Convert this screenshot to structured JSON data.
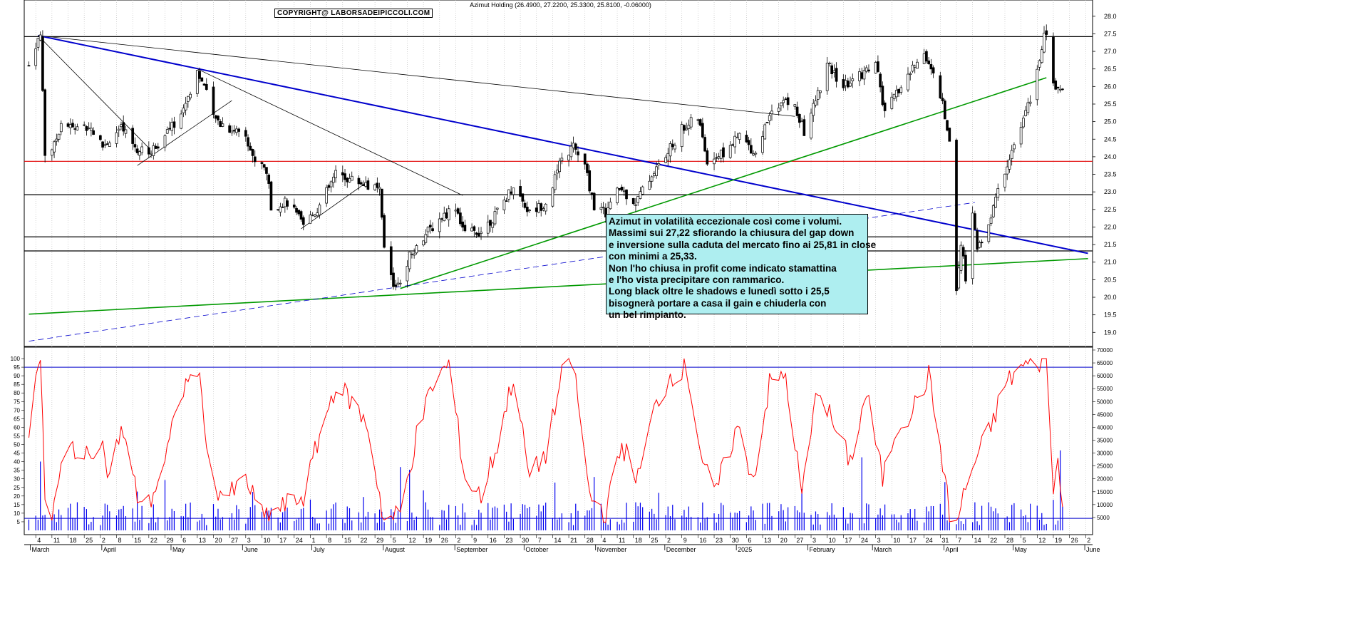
{
  "header": {
    "title": "Azimut Holding (26.4900, 27.2200, 25.3300, 25.8100, -0.06000)",
    "copyright": "COPYRIGHT@ LABORSADEIPICCOLI.COM"
  },
  "note": {
    "lines": [
      "Azimut in volatilità eccezionale così come i volumi.",
      "Massimi sui 27,22 sfiorando la chiusura del gap down",
      "e inversione sulla caduta del mercato fino ai 25,81 in close",
      "con minimi a 25,33.",
      "Non l'ho chiusa in profit come indicato stamattina",
      "e l'ho vista precipitare con rammarico.",
      "Long black oltre le shadows e lunedì sotto i 25,5",
      "bisognerà portare a casa il gain e chiuderla con",
      "un bel rimpianto."
    ]
  },
  "chart_data": {
    "type": "candlestick",
    "title": "Azimut Holding",
    "price_axis": {
      "range": [
        18.6,
        28.3
      ],
      "ticks": [
        19.0,
        19.5,
        20.0,
        20.5,
        21.0,
        21.5,
        22.0,
        22.5,
        23.0,
        23.5,
        24.0,
        24.5,
        25.0,
        25.5,
        26.0,
        26.5,
        27.0,
        27.5,
        28.0
      ]
    },
    "oscillator_axis": {
      "range": [
        0,
        105
      ],
      "ticks": [
        5,
        10,
        15,
        20,
        25,
        30,
        35,
        40,
        45,
        50,
        55,
        60,
        65,
        70,
        75,
        80,
        85,
        90,
        95,
        100
      ]
    },
    "volume_axis": {
      "range": [
        0,
        70000
      ],
      "ticks": [
        5000,
        10000,
        15000,
        20000,
        25000,
        30000,
        35000,
        40000,
        45000,
        50000,
        55000,
        60000,
        65000,
        70000
      ]
    },
    "day_labels": [
      "4",
      "11",
      "18",
      "25",
      "2",
      "8",
      "15",
      "22",
      "29",
      "6",
      "13",
      "20",
      "27",
      "3",
      "10",
      "17",
      "24",
      "1",
      "8",
      "15",
      "22",
      "29",
      "5",
      "12",
      "19",
      "26",
      "2",
      "9",
      "16",
      "23",
      "30",
      "7",
      "14",
      "21",
      "28",
      "4",
      "11",
      "18",
      "25",
      "2",
      "9",
      "16",
      "23",
      "30",
      "6",
      "13",
      "20",
      "27",
      "3",
      "10",
      "17",
      "24",
      "3",
      "10",
      "17",
      "24",
      "31",
      "7",
      "14",
      "22",
      "28",
      "5",
      "12",
      "19",
      "26",
      "2"
    ],
    "month_labels": [
      "March",
      "April",
      "May",
      "June",
      "July",
      "August",
      "September",
      "October",
      "November",
      "December",
      "2025",
      "February",
      "March",
      "April",
      "May",
      "June"
    ],
    "horizontal_levels": [
      {
        "price": 27.42,
        "color": "#000000"
      },
      {
        "price": 23.87,
        "color": "#e00000"
      },
      {
        "price": 22.92,
        "color": "#000000"
      },
      {
        "price": 21.72,
        "color": "#000000"
      },
      {
        "price": 21.32,
        "color": "#000000"
      }
    ],
    "oscillator_levels": [
      95,
      7
    ],
    "trendlines": [
      {
        "from": [
          "2024-03-05",
          27.45
        ],
        "to": [
          "2025-06-03",
          21.25
        ],
        "color": "#0000cc",
        "width": 2
      },
      {
        "from": [
          "2024-03-05",
          27.45
        ],
        "to": [
          "2025-01-27",
          25.15
        ],
        "color": "#000000",
        "width": 0.8
      },
      {
        "from": [
          "2024-03-05",
          27.45
        ],
        "to": [
          "2024-04-22",
          24.25
        ],
        "color": "#000000",
        "width": 0.8
      },
      {
        "from": [
          "2024-04-17",
          23.75
        ],
        "to": [
          "2024-05-28",
          25.6
        ],
        "color": "#000000",
        "width": 0.8
      },
      {
        "from": [
          "2024-05-13",
          26.5
        ],
        "to": [
          "2024-09-05",
          22.9
        ],
        "color": "#000000",
        "width": 0.8
      },
      {
        "from": [
          "2024-06-27",
          21.95
        ],
        "to": [
          "2024-07-26",
          23.3
        ],
        "color": "#000000",
        "width": 0.8
      },
      {
        "from": [
          "2024-08-09",
          20.25
        ],
        "to": [
          "2025-05-16",
          26.25
        ],
        "color": "#009900",
        "width": 1.6
      },
      {
        "from": [
          "2024-03-01",
          19.52
        ],
        "to": [
          "2025-06-03",
          21.1
        ],
        "color": "#009900",
        "width": 1.6
      },
      {
        "from": [
          "2024-03-01",
          18.75
        ],
        "to": [
          "2025-04-15",
          22.7
        ],
        "color": "#0000cc",
        "width": 0.8,
        "dash": true
      }
    ],
    "price_path": [
      [
        "2024-03-01",
        26.6
      ],
      [
        "2024-03-04",
        27.2
      ],
      [
        "2024-03-06",
        27.45
      ],
      [
        "2024-03-07",
        25.9
      ],
      [
        "2024-03-08",
        24.1
      ],
      [
        "2024-03-12",
        24.3
      ],
      [
        "2024-03-15",
        25.0
      ],
      [
        "2024-03-20",
        24.8
      ],
      [
        "2024-03-27",
        24.9
      ],
      [
        "2024-04-02",
        24.3
      ],
      [
        "2024-04-10",
        24.8
      ],
      [
        "2024-04-17",
        24.2
      ],
      [
        "2024-04-22",
        24.1
      ],
      [
        "2024-04-29",
        24.6
      ],
      [
        "2024-05-06",
        25.2
      ],
      [
        "2024-05-13",
        26.45
      ],
      [
        "2024-05-16",
        26.0
      ],
      [
        "2024-05-20",
        25.1
      ],
      [
        "2024-05-27",
        24.8
      ],
      [
        "2024-06-03",
        24.7
      ],
      [
        "2024-06-06",
        23.95
      ],
      [
        "2024-06-12",
        23.6
      ],
      [
        "2024-06-14",
        22.6
      ],
      [
        "2024-06-21",
        22.7
      ],
      [
        "2024-06-28",
        22.05
      ],
      [
        "2024-07-05",
        22.6
      ],
      [
        "2024-07-12",
        23.5
      ],
      [
        "2024-07-19",
        23.35
      ],
      [
        "2024-07-26",
        23.2
      ],
      [
        "2024-07-31",
        23.0
      ],
      [
        "2024-08-02",
        21.4
      ],
      [
        "2024-08-06",
        20.3
      ],
      [
        "2024-08-09",
        20.5
      ],
      [
        "2024-08-13",
        21.2
      ],
      [
        "2024-08-20",
        21.8
      ],
      [
        "2024-08-27",
        22.3
      ],
      [
        "2024-09-02",
        22.6
      ],
      [
        "2024-09-06",
        21.8
      ],
      [
        "2024-09-13",
        21.9
      ],
      [
        "2024-09-20",
        22.4
      ],
      [
        "2024-09-27",
        23.2
      ],
      [
        "2024-10-04",
        22.4
      ],
      [
        "2024-10-11",
        22.7
      ],
      [
        "2024-10-18",
        23.9
      ],
      [
        "2024-10-23",
        24.3
      ],
      [
        "2024-10-28",
        23.7
      ],
      [
        "2024-11-01",
        22.6
      ],
      [
        "2024-11-06",
        22.4
      ],
      [
        "2024-11-12",
        23.1
      ],
      [
        "2024-11-19",
        22.7
      ],
      [
        "2024-11-26",
        23.5
      ],
      [
        "2024-12-02",
        24.0
      ],
      [
        "2024-12-09",
        24.8
      ],
      [
        "2024-12-16",
        25.1
      ],
      [
        "2024-12-20",
        23.9
      ],
      [
        "2024-12-27",
        24.1
      ],
      [
        "2025-01-03",
        24.6
      ],
      [
        "2025-01-10",
        24.1
      ],
      [
        "2025-01-17",
        25.4
      ],
      [
        "2025-01-22",
        25.6
      ],
      [
        "2025-01-27",
        25.4
      ],
      [
        "2025-01-31",
        24.7
      ],
      [
        "2025-02-05",
        25.6
      ],
      [
        "2025-02-10",
        26.6
      ],
      [
        "2025-02-17",
        26.0
      ],
      [
        "2025-02-24",
        26.3
      ],
      [
        "2025-03-03",
        26.7
      ],
      [
        "2025-03-07",
        25.2
      ],
      [
        "2025-03-12",
        25.8
      ],
      [
        "2025-03-17",
        26.3
      ],
      [
        "2025-03-24",
        27.0
      ],
      [
        "2025-03-28",
        26.3
      ],
      [
        "2025-04-01",
        25.5
      ],
      [
        "2025-04-04",
        24.4
      ],
      [
        "2025-04-07",
        20.3
      ],
      [
        "2025-04-09",
        21.5
      ],
      [
        "2025-04-11",
        20.6
      ],
      [
        "2025-04-14",
        22.5
      ],
      [
        "2025-04-16",
        21.3
      ],
      [
        "2025-04-22",
        22.3
      ],
      [
        "2025-04-25",
        23.0
      ],
      [
        "2025-04-30",
        24.0
      ],
      [
        "2025-05-06",
        25.0
      ],
      [
        "2025-05-12",
        26.4
      ],
      [
        "2025-05-15",
        27.4
      ],
      [
        "2025-05-16",
        27.55
      ],
      [
        "2025-05-19",
        26.0
      ],
      [
        "2025-05-23",
        25.9
      ]
    ],
    "oscillator_path": [
      [
        "2024-03-01",
        60
      ],
      [
        "2024-03-04",
        95
      ],
      [
        "2024-03-06",
        97
      ],
      [
        "2024-03-08",
        20
      ],
      [
        "2024-03-11",
        8
      ],
      [
        "2024-03-15",
        35
      ],
      [
        "2024-03-20",
        50
      ],
      [
        "2024-03-25",
        40
      ],
      [
        "2024-04-01",
        55
      ],
      [
        "2024-04-05",
        30
      ],
      [
        "2024-04-10",
        60
      ],
      [
        "2024-04-17",
        20
      ],
      [
        "2024-04-22",
        15
      ],
      [
        "2024-04-29",
        40
      ],
      [
        "2024-05-06",
        80
      ],
      [
        "2024-05-13",
        95
      ],
      [
        "2024-05-20",
        25
      ],
      [
        "2024-05-27",
        20
      ],
      [
        "2024-06-03",
        30
      ],
      [
        "2024-06-10",
        8
      ],
      [
        "2024-06-14",
        10
      ],
      [
        "2024-06-21",
        15
      ],
      [
        "2024-06-28",
        20
      ],
      [
        "2024-07-05",
        55
      ],
      [
        "2024-07-12",
        85
      ],
      [
        "2024-07-19",
        75
      ],
      [
        "2024-07-26",
        60
      ],
      [
        "2024-08-02",
        5
      ],
      [
        "2024-08-09",
        10
      ],
      [
        "2024-08-16",
        55
      ],
      [
        "2024-08-23",
        85
      ],
      [
        "2024-08-30",
        97
      ],
      [
        "2024-09-06",
        30
      ],
      [
        "2024-09-13",
        20
      ],
      [
        "2024-09-20",
        50
      ],
      [
        "2024-09-27",
        90
      ],
      [
        "2024-10-04",
        30
      ],
      [
        "2024-10-11",
        45
      ],
      [
        "2024-10-18",
        90
      ],
      [
        "2024-10-23",
        97
      ],
      [
        "2024-10-30",
        20
      ],
      [
        "2024-11-06",
        10
      ],
      [
        "2024-11-13",
        50
      ],
      [
        "2024-11-20",
        30
      ],
      [
        "2024-11-27",
        70
      ],
      [
        "2024-12-04",
        90
      ],
      [
        "2024-12-11",
        95
      ],
      [
        "2024-12-18",
        40
      ],
      [
        "2024-12-23",
        20
      ],
      [
        "2025-01-02",
        60
      ],
      [
        "2025-01-09",
        30
      ],
      [
        "2025-01-16",
        85
      ],
      [
        "2025-01-23",
        90
      ],
      [
        "2025-01-30",
        20
      ],
      [
        "2025-02-06",
        85
      ],
      [
        "2025-02-13",
        60
      ],
      [
        "2025-02-20",
        40
      ],
      [
        "2025-02-27",
        80
      ],
      [
        "2025-03-06",
        30
      ],
      [
        "2025-03-12",
        60
      ],
      [
        "2025-03-19",
        70
      ],
      [
        "2025-03-26",
        90
      ],
      [
        "2025-04-01",
        40
      ],
      [
        "2025-04-04",
        10
      ],
      [
        "2025-04-07",
        3
      ],
      [
        "2025-04-10",
        20
      ],
      [
        "2025-04-15",
        40
      ],
      [
        "2025-04-22",
        60
      ],
      [
        "2025-04-28",
        85
      ],
      [
        "2025-05-05",
        95
      ],
      [
        "2025-05-12",
        98
      ],
      [
        "2025-05-16",
        99
      ],
      [
        "2025-05-19",
        25
      ],
      [
        "2025-05-21",
        40
      ],
      [
        "2025-05-23",
        20
      ]
    ]
  }
}
